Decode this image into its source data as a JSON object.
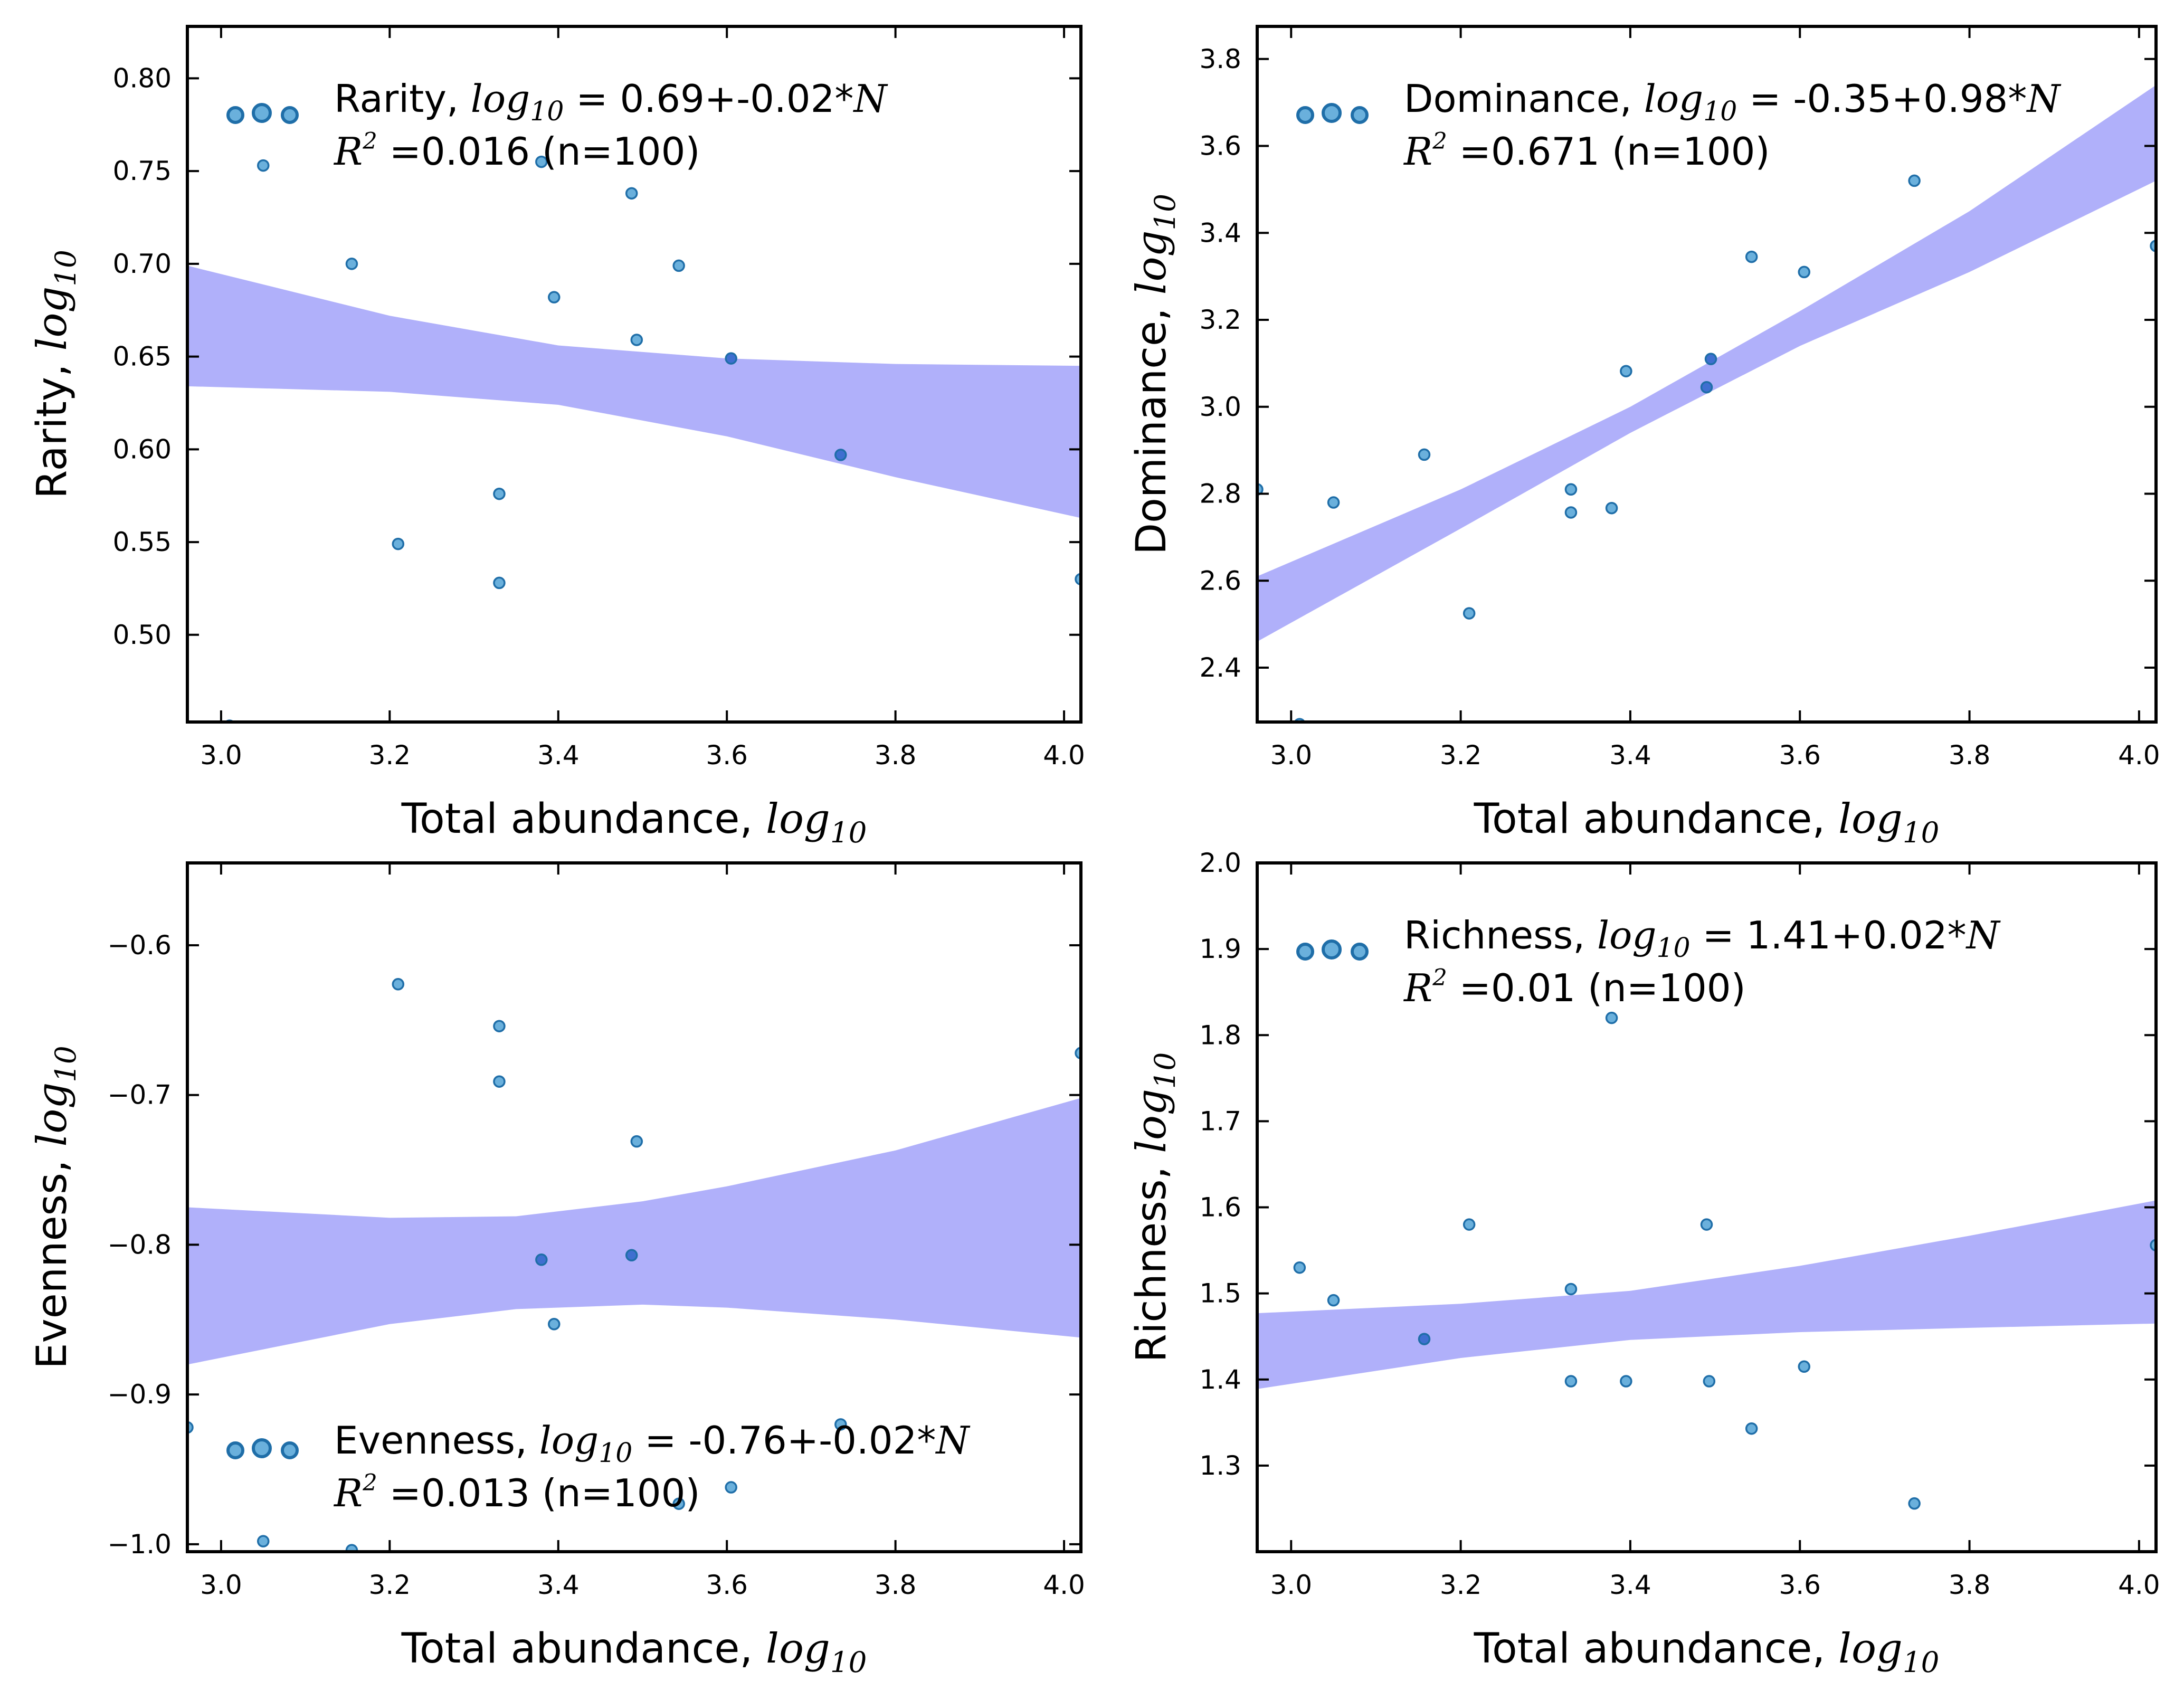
{
  "colors": {
    "band": "#b0b0fa",
    "point_fill": "#6ab0dc",
    "point_edge": "#1f6ea8",
    "dark_fill": "#3f6fd0",
    "axis": "#000000"
  },
  "chart_data": [
    {
      "type": "scatter",
      "panel": "top-left",
      "xlabel_text": "Total abundance, ",
      "xlabel_math": "log",
      "xlabel_sub": "10",
      "ylabel_text": "Rarity, ",
      "ylabel_math": "log",
      "ylabel_sub": "10",
      "xlim": [
        2.96,
        4.02
      ],
      "ylim": [
        0.453,
        0.828
      ],
      "xticks": [
        "3.0",
        "3.2",
        "3.4",
        "3.6",
        "3.8",
        "4.0"
      ],
      "yticks": [
        "0.50",
        "0.55",
        "0.60",
        "0.65",
        "0.70",
        "0.75",
        "0.80"
      ],
      "legend_position": "top-left",
      "legend_line1_text": "Rarity, ",
      "legend_math": "log",
      "legend_sub": "10",
      "legend_eq": " = 0.69+-0.02*",
      "legend_var": "N",
      "legend_r": "R",
      "legend_sup": "2",
      "legend_line2": " =0.016 (n=100)",
      "band": {
        "x": [
          2.96,
          3.2,
          3.4,
          3.6,
          3.8,
          4.02
        ],
        "upper": [
          0.699,
          0.672,
          0.656,
          0.649,
          0.646,
          0.645
        ],
        "lower": [
          0.634,
          0.631,
          0.624,
          0.607,
          0.585,
          0.563
        ]
      },
      "points": [
        {
          "x": 3.01,
          "y": 0.451
        },
        {
          "x": 3.05,
          "y": 0.753
        },
        {
          "x": 3.155,
          "y": 0.7
        },
        {
          "x": 3.21,
          "y": 0.549
        },
        {
          "x": 3.33,
          "y": 0.576
        },
        {
          "x": 3.33,
          "y": 0.528
        },
        {
          "x": 3.38,
          "y": 0.755
        },
        {
          "x": 3.395,
          "y": 0.682
        },
        {
          "x": 3.487,
          "y": 0.738
        },
        {
          "x": 3.493,
          "y": 0.659
        },
        {
          "x": 3.543,
          "y": 0.699
        },
        {
          "x": 3.605,
          "y": 0.649,
          "dark": true
        },
        {
          "x": 3.735,
          "y": 0.597,
          "dark": true
        },
        {
          "x": 4.02,
          "y": 0.53
        }
      ]
    },
    {
      "type": "scatter",
      "panel": "top-right",
      "xlabel_text": "Total abundance, ",
      "xlabel_math": "log",
      "xlabel_sub": "10",
      "ylabel_text": "Dominance, ",
      "ylabel_math": "log",
      "ylabel_sub": "10",
      "xlim": [
        2.96,
        4.02
      ],
      "ylim": [
        2.275,
        3.875
      ],
      "xticks": [
        "3.0",
        "3.2",
        "3.4",
        "3.6",
        "3.8",
        "4.0"
      ],
      "yticks": [
        "2.4",
        "2.6",
        "2.8",
        "3.0",
        "3.2",
        "3.4",
        "3.6",
        "3.8"
      ],
      "legend_position": "top-left",
      "legend_line1_text": "Dominance, ",
      "legend_math": "log",
      "legend_sub": "10",
      "legend_eq": " = -0.35+0.98*",
      "legend_var": "N",
      "legend_r": "R",
      "legend_sup": "2",
      "legend_line2": " =0.671 (n=100)",
      "band": {
        "x": [
          2.96,
          3.2,
          3.4,
          3.6,
          3.8,
          4.02
        ],
        "upper": [
          2.61,
          2.81,
          3.0,
          3.22,
          3.45,
          3.74
        ],
        "lower": [
          2.46,
          2.72,
          2.94,
          3.14,
          3.31,
          3.52
        ]
      },
      "points": [
        {
          "x": 2.96,
          "y": 2.81
        },
        {
          "x": 3.01,
          "y": 2.27
        },
        {
          "x": 3.05,
          "y": 2.78
        },
        {
          "x": 3.157,
          "y": 2.89
        },
        {
          "x": 3.21,
          "y": 2.525
        },
        {
          "x": 3.33,
          "y": 2.81
        },
        {
          "x": 3.33,
          "y": 2.757
        },
        {
          "x": 3.378,
          "y": 2.767
        },
        {
          "x": 3.395,
          "y": 3.082
        },
        {
          "x": 3.49,
          "y": 3.045,
          "dark": true
        },
        {
          "x": 3.495,
          "y": 3.11,
          "dark": true
        },
        {
          "x": 3.543,
          "y": 3.345
        },
        {
          "x": 3.605,
          "y": 3.31
        },
        {
          "x": 3.735,
          "y": 3.52
        },
        {
          "x": 4.02,
          "y": 3.37
        }
      ]
    },
    {
      "type": "scatter",
      "panel": "bottom-left",
      "xlabel_text": "Total abundance, ",
      "xlabel_math": "log",
      "xlabel_sub": "10",
      "ylabel_text": "Evenness, ",
      "ylabel_math": "log",
      "ylabel_sub": "10",
      "xlim": [
        2.96,
        4.02
      ],
      "ylim": [
        -1.005,
        -0.545
      ],
      "xticks": [
        "3.0",
        "3.2",
        "3.4",
        "3.6",
        "3.8",
        "4.0"
      ],
      "yticks": [
        "−1.0",
        "−0.9",
        "−0.8",
        "−0.7",
        "−0.6"
      ],
      "legend_position": "bottom-left",
      "legend_line1_text": "Evenness, ",
      "legend_math": "log",
      "legend_sub": "10",
      "legend_eq": " = -0.76+-0.02*",
      "legend_var": "N",
      "legend_r": "R",
      "legend_sup": "2",
      "legend_line2": " =0.013 (n=100)",
      "band": {
        "x": [
          2.96,
          3.2,
          3.35,
          3.5,
          3.6,
          3.8,
          4.02
        ],
        "upper": [
          -0.775,
          -0.782,
          -0.781,
          -0.771,
          -0.761,
          -0.737,
          -0.702
        ],
        "lower": [
          -0.88,
          -0.853,
          -0.843,
          -0.84,
          -0.842,
          -0.85,
          -0.862
        ]
      },
      "points": [
        {
          "x": 2.96,
          "y": -0.922
        },
        {
          "x": 3.05,
          "y": -0.998
        },
        {
          "x": 3.155,
          "y": -1.004
        },
        {
          "x": 3.21,
          "y": -0.626
        },
        {
          "x": 3.33,
          "y": -0.654
        },
        {
          "x": 3.33,
          "y": -0.691
        },
        {
          "x": 3.38,
          "y": -0.81,
          "dark": true
        },
        {
          "x": 3.395,
          "y": -0.853
        },
        {
          "x": 3.487,
          "y": -0.807,
          "dark": true
        },
        {
          "x": 3.493,
          "y": -0.731
        },
        {
          "x": 3.543,
          "y": -0.973
        },
        {
          "x": 3.605,
          "y": -0.962
        },
        {
          "x": 3.735,
          "y": -0.92
        },
        {
          "x": 4.02,
          "y": -0.672
        }
      ]
    },
    {
      "type": "scatter",
      "panel": "bottom-right",
      "xlabel_text": "Total abundance, ",
      "xlabel_math": "log",
      "xlabel_sub": "10",
      "ylabel_text": "Richness, ",
      "ylabel_math": "log",
      "ylabel_sub": "10",
      "xlim": [
        2.96,
        4.02
      ],
      "ylim": [
        1.2,
        2.0
      ],
      "xticks": [
        "3.0",
        "3.2",
        "3.4",
        "3.6",
        "3.8",
        "4.0"
      ],
      "yticks": [
        "1.3",
        "1.4",
        "1.5",
        "1.6",
        "1.7",
        "1.8",
        "1.9",
        "2.0"
      ],
      "legend_position": "top-left",
      "legend_line1_text": "Richness, ",
      "legend_math": "log",
      "legend_sub": "10",
      "legend_eq": " = 1.41+0.02*",
      "legend_var": "N",
      "legend_r": "R",
      "legend_sup": "2",
      "legend_line2": " =0.01 (n=100)",
      "band": {
        "x": [
          2.96,
          3.2,
          3.4,
          3.6,
          3.8,
          4.02
        ],
        "upper": [
          1.477,
          1.488,
          1.503,
          1.532,
          1.567,
          1.608
        ],
        "lower": [
          1.389,
          1.425,
          1.446,
          1.455,
          1.46,
          1.465
        ]
      },
      "points": [
        {
          "x": 3.01,
          "y": 1.53
        },
        {
          "x": 3.05,
          "y": 1.492
        },
        {
          "x": 3.157,
          "y": 1.447,
          "dark": true
        },
        {
          "x": 3.21,
          "y": 1.58
        },
        {
          "x": 3.33,
          "y": 1.505
        },
        {
          "x": 3.33,
          "y": 1.398
        },
        {
          "x": 3.378,
          "y": 1.82
        },
        {
          "x": 3.395,
          "y": 1.398
        },
        {
          "x": 3.49,
          "y": 1.58
        },
        {
          "x": 3.493,
          "y": 1.398
        },
        {
          "x": 3.543,
          "y": 1.343
        },
        {
          "x": 3.605,
          "y": 1.415
        },
        {
          "x": 3.735,
          "y": 1.256
        },
        {
          "x": 4.02,
          "y": 1.556
        }
      ]
    }
  ]
}
